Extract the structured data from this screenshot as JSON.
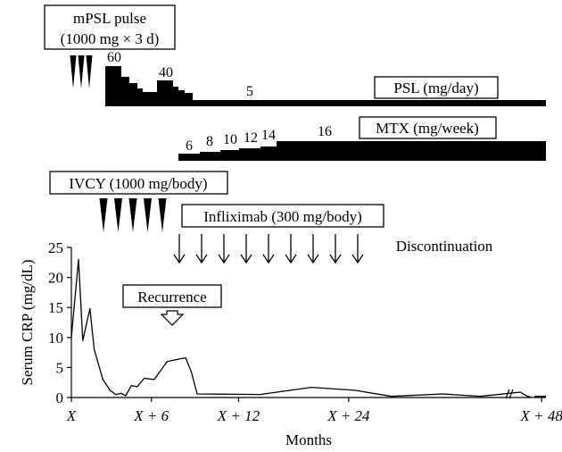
{
  "chart_data": {
    "type": "line",
    "treatments": {
      "mpsl": {
        "label_line1": "mPSL pulse",
        "label_line2": "(1000 mg × 3 d)",
        "pulses": 3
      },
      "psl": {
        "label": "PSL (mg/day)",
        "dose_labels": [
          "60",
          "40",
          "5"
        ]
      },
      "mtx": {
        "label": "MTX (mg/week)",
        "dose_labels": [
          "6",
          "8",
          "10",
          "12",
          "14",
          "16"
        ]
      },
      "ivcy": {
        "label": "IVCY (1000 mg/body)",
        "pulses": 5
      },
      "ifx": {
        "label": "Infliximab (300 mg/body)",
        "doses": 9,
        "end_label": "Discontinuation"
      }
    },
    "annotation": {
      "label": "Recurrence",
      "x": 5.6,
      "y": 6.5
    },
    "xlabel": "Months",
    "ylabel": "Serum CRP (mg/dL)",
    "x_ticks": [
      {
        "x": 0,
        "label": "X"
      },
      {
        "x": 5.6,
        "label": "X + 6"
      },
      {
        "x": 11.7,
        "label": "X + 12"
      },
      {
        "x": 19.4,
        "label": "X + 24"
      },
      {
        "x": 32.9,
        "label": "X + 48"
      }
    ],
    "y_ticks": [
      0,
      5,
      10,
      15,
      20,
      25
    ],
    "ylim": [
      0,
      25
    ],
    "xlim": [
      0,
      33.2
    ],
    "axis_break_x": 32.2,
    "series": [
      {
        "values": [
          [
            0,
            10
          ],
          [
            0.5,
            23
          ],
          [
            0.8,
            9.5
          ],
          [
            1.3,
            14.8
          ],
          [
            1.6,
            8
          ],
          [
            2.2,
            3
          ],
          [
            2.7,
            1.2
          ],
          [
            3.1,
            0.5
          ],
          [
            3.5,
            0.7
          ],
          [
            3.8,
            0.3
          ],
          [
            4.2,
            2
          ],
          [
            4.6,
            1.8
          ],
          [
            5.1,
            3.2
          ],
          [
            5.8,
            3
          ],
          [
            6.7,
            6
          ],
          [
            7.5,
            6.4
          ],
          [
            8.0,
            6.6
          ],
          [
            8.4,
            4.2
          ],
          [
            8.8,
            0.6
          ],
          [
            13.2,
            0.5
          ],
          [
            16.8,
            1.7
          ],
          [
            19.8,
            1.2
          ],
          [
            22.4,
            0.2
          ],
          [
            26.0,
            0.6
          ],
          [
            28.6,
            0.2
          ],
          [
            31.4,
            0.9
          ],
          [
            31.9,
            0.2
          ],
          [
            32.1,
            0.1
          ]
        ]
      },
      {
        "values": [
          [
            32.4,
            0.2
          ],
          [
            33.2,
            0.2
          ]
        ]
      }
    ]
  }
}
